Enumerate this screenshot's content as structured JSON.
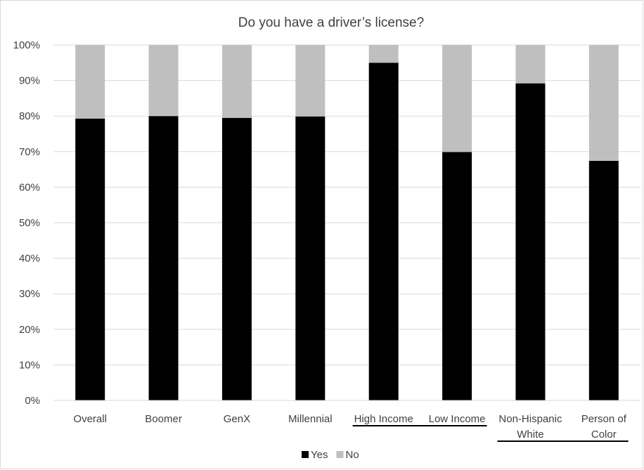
{
  "chart_data": {
    "type": "bar",
    "stacked": true,
    "title": "Do you have a driver’s license?",
    "xlabel": "",
    "ylabel": "",
    "ylim": [
      0,
      100
    ],
    "y_ticks": [
      "0%",
      "10%",
      "20%",
      "30%",
      "40%",
      "50%",
      "60%",
      "70%",
      "80%",
      "90%",
      "100%"
    ],
    "categories": [
      [
        "Overall"
      ],
      [
        "Boomer"
      ],
      [
        "GenX"
      ],
      [
        "Millennial"
      ],
      [
        "High Income"
      ],
      [
        "Low Income"
      ],
      [
        "Non-Hispanic",
        "White"
      ],
      [
        "Person of",
        "Color"
      ]
    ],
    "series": [
      {
        "name": "Yes",
        "color": "#000000",
        "values": [
          79.3,
          80.0,
          79.5,
          79.9,
          95.0,
          69.9,
          89.2,
          67.4
        ]
      },
      {
        "name": "No",
        "color": "#bfbfbf",
        "values": [
          20.7,
          20.0,
          20.5,
          20.1,
          5.0,
          30.1,
          10.8,
          32.6
        ]
      }
    ],
    "grid": true,
    "legend_position": "bottom",
    "underline_groups": [
      [
        4,
        5
      ],
      [
        6,
        7
      ]
    ]
  }
}
